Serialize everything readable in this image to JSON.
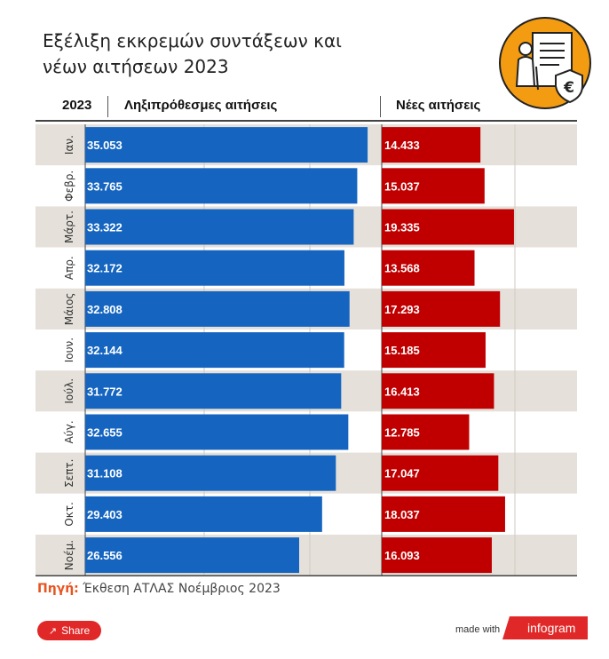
{
  "title": {
    "line1": "Εξέλιξη εκκρεμών συντάξεων και",
    "line2": "νέων αιτήσεων 2023"
  },
  "logo": {
    "icon": "pension-document-euro-icon",
    "color": "#f39c12"
  },
  "headers": {
    "year": "2023",
    "series_a": "Ληξιπρόθεσμες αιτήσεις",
    "series_b": "Νέες αιτήσεις"
  },
  "chart_data": {
    "type": "bar",
    "orientation": "horizontal",
    "title": "Εξέλιξη εκκρεμών συντάξεων και νέων αιτήσεων 2023",
    "categories": [
      "Ιαν.",
      "Φεβρ.",
      "Μάρτ.",
      "Απρ.",
      "Μάιος",
      "Ιουν.",
      "Ιούλ.",
      "Αύγ.",
      "Σεπτ.",
      "Οκτ.",
      "Νοέμ."
    ],
    "series": [
      {
        "name": "Ληξιπρόθεσμες αιτήσεις",
        "color": "#1565c0",
        "values": [
          35053,
          33765,
          33322,
          32172,
          32808,
          32144,
          31772,
          32655,
          31108,
          29403,
          26556
        ],
        "labels": [
          "35.053",
          "33.765",
          "33.322",
          "32.172",
          "32.808",
          "32.144",
          "31.772",
          "32.655",
          "31.108",
          "29.403",
          "26.556"
        ],
        "xlim": [
          0,
          40000
        ]
      },
      {
        "name": "Νέες αιτήσεις",
        "color": "#c00000",
        "values": [
          14433,
          15037,
          19335,
          13568,
          17293,
          15185,
          16413,
          12785,
          17047,
          18037,
          16093
        ],
        "labels": [
          "14.433",
          "15.037",
          "19.335",
          "13.568",
          "17.293",
          "15.185",
          "16.413",
          "12.785",
          "17.047",
          "18.037",
          "16.093"
        ],
        "xlim": [
          0,
          27000
        ]
      }
    ],
    "row_colors": [
      "#e5e1da",
      "#ffffff"
    ]
  },
  "source": {
    "label": "Πηγή:",
    "text": "Έκθεση ΑΤΛΑΣ Νοέμβριος 2023"
  },
  "footer": {
    "share_label": "Share",
    "share_icon": "share-icon",
    "made_with": "made with",
    "brand": "infogram",
    "brand_color": "#e12828"
  }
}
